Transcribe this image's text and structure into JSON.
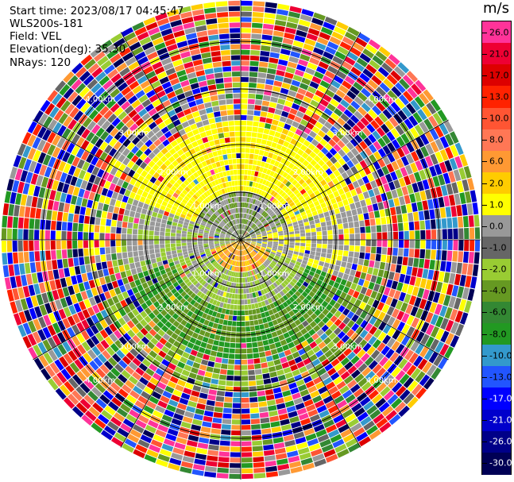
{
  "header": {
    "start_time": "Start time: 2023/08/17 04:45:47",
    "instrument": "WLS200s-181",
    "field": "Field: VEL",
    "elevation": "Elevation(deg): 35.30",
    "nrays": "NRays: 120"
  },
  "colorbar": {
    "unit": "m/s",
    "labels": [
      "26.0",
      "21.0",
      "17.0",
      "13.0",
      "10.0",
      "8.0",
      "6.0",
      "2.0",
      "1.0",
      "0.0",
      "-1.0",
      "-2.0",
      "-4.0",
      "-6.0",
      "-8.0",
      "-10.0",
      "-13.0",
      "-17.0",
      "-21.0",
      "-26.0",
      "-30.0"
    ],
    "colors": [
      "#ff3399",
      "#ee0033",
      "#dd0000",
      "#ff2200",
      "#ff5533",
      "#ff7755",
      "#ff9933",
      "#ffcc00",
      "#ffff00",
      "#999999",
      "#666666",
      "#99cc33",
      "#669922",
      "#338833",
      "#229922",
      "#3399cc",
      "#2255ff",
      "#0000ff",
      "#0000cc",
      "#000088",
      "#000055"
    ]
  },
  "chart_data": {
    "type": "heatmap",
    "plot_kind": "PPI radial velocity",
    "n_rays": 120,
    "range_ring_labels": [
      "1.00km",
      "2.00km",
      "3.00km",
      "4.00km"
    ],
    "range_ring_km": [
      1,
      2,
      3,
      4
    ],
    "sector_lines": 12,
    "field": "VEL",
    "unit": "m/s",
    "value_range": [
      -30,
      26
    ]
  }
}
